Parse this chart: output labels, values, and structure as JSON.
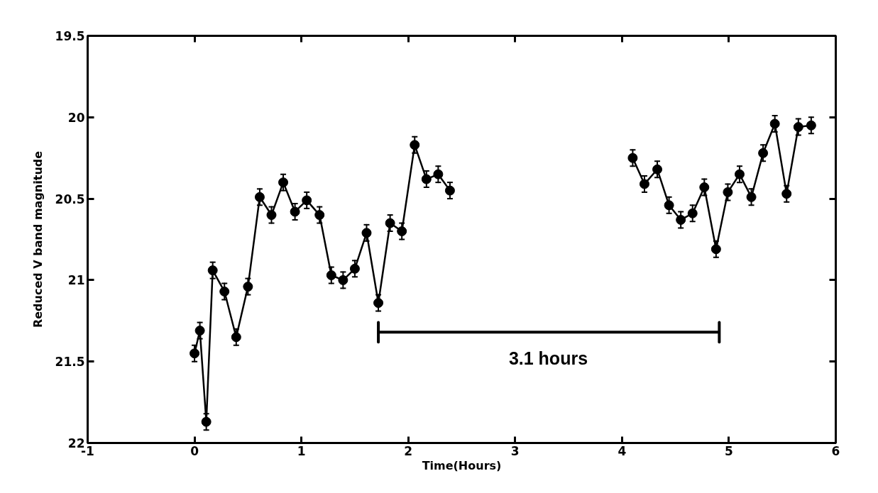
{
  "chart_data": {
    "type": "line",
    "xlabel": "Time(Hours)",
    "ylabel": "Reduced V band magnitude",
    "xlim": [
      -1,
      6
    ],
    "ylim": [
      22,
      19.5
    ],
    "xticks": [
      -1,
      0,
      1,
      2,
      3,
      4,
      5,
      6
    ],
    "yticks": [
      19.5,
      20,
      20.5,
      21,
      21.5,
      22
    ],
    "grid": false,
    "marker": "circle",
    "line_style": "solid",
    "annotations": [
      {
        "text": "3.1 hours",
        "x": 3.31,
        "y": 21.32
      }
    ],
    "series": [
      {
        "color": "#000000",
        "x": [
          0.0,
          0.05,
          0.11,
          0.17,
          0.28,
          0.39,
          0.5,
          0.61,
          0.72,
          0.83,
          0.94,
          1.05,
          1.17,
          1.28,
          1.39,
          1.5,
          1.61,
          1.72,
          1.83,
          1.94,
          2.06,
          2.17,
          2.28,
          2.39
        ],
        "values": [
          21.45,
          21.31,
          21.87,
          20.94,
          21.07,
          21.35,
          21.04,
          20.49,
          20.6,
          20.4,
          20.58,
          20.51,
          20.6,
          20.97,
          21.0,
          20.93,
          20.71,
          21.14,
          20.65,
          20.7,
          20.17,
          20.38,
          20.35,
          20.45
        ],
        "errors": [
          0.05,
          0.05,
          0.05,
          0.05,
          0.05,
          0.05,
          0.05,
          0.05,
          0.05,
          0.05,
          0.05,
          0.05,
          0.05,
          0.05,
          0.05,
          0.05,
          0.05,
          0.05,
          0.05,
          0.05,
          0.05,
          0.05,
          0.05,
          0.05
        ]
      },
      {
        "color": "#000000",
        "x": [
          4.1,
          4.21,
          4.33,
          4.44,
          4.55,
          4.66,
          4.77,
          4.88,
          4.99,
          5.1,
          5.21,
          5.32,
          5.43,
          5.54,
          5.65,
          5.77
        ],
        "values": [
          20.25,
          20.41,
          20.32,
          20.54,
          20.63,
          20.59,
          20.43,
          20.81,
          20.46,
          20.35,
          20.49,
          20.22,
          20.04,
          20.47,
          20.06,
          20.05
        ],
        "errors": [
          0.05,
          0.05,
          0.05,
          0.05,
          0.05,
          0.05,
          0.05,
          0.05,
          0.05,
          0.05,
          0.05,
          0.05,
          0.05,
          0.05,
          0.05,
          0.05
        ]
      },
      {
        "type": "line",
        "marker": "none",
        "color": "#000000",
        "x": [
          1.72,
          4.91
        ],
        "values": [
          21.32,
          21.32
        ],
        "errors": [
          0.06,
          0.06
        ]
      }
    ]
  }
}
